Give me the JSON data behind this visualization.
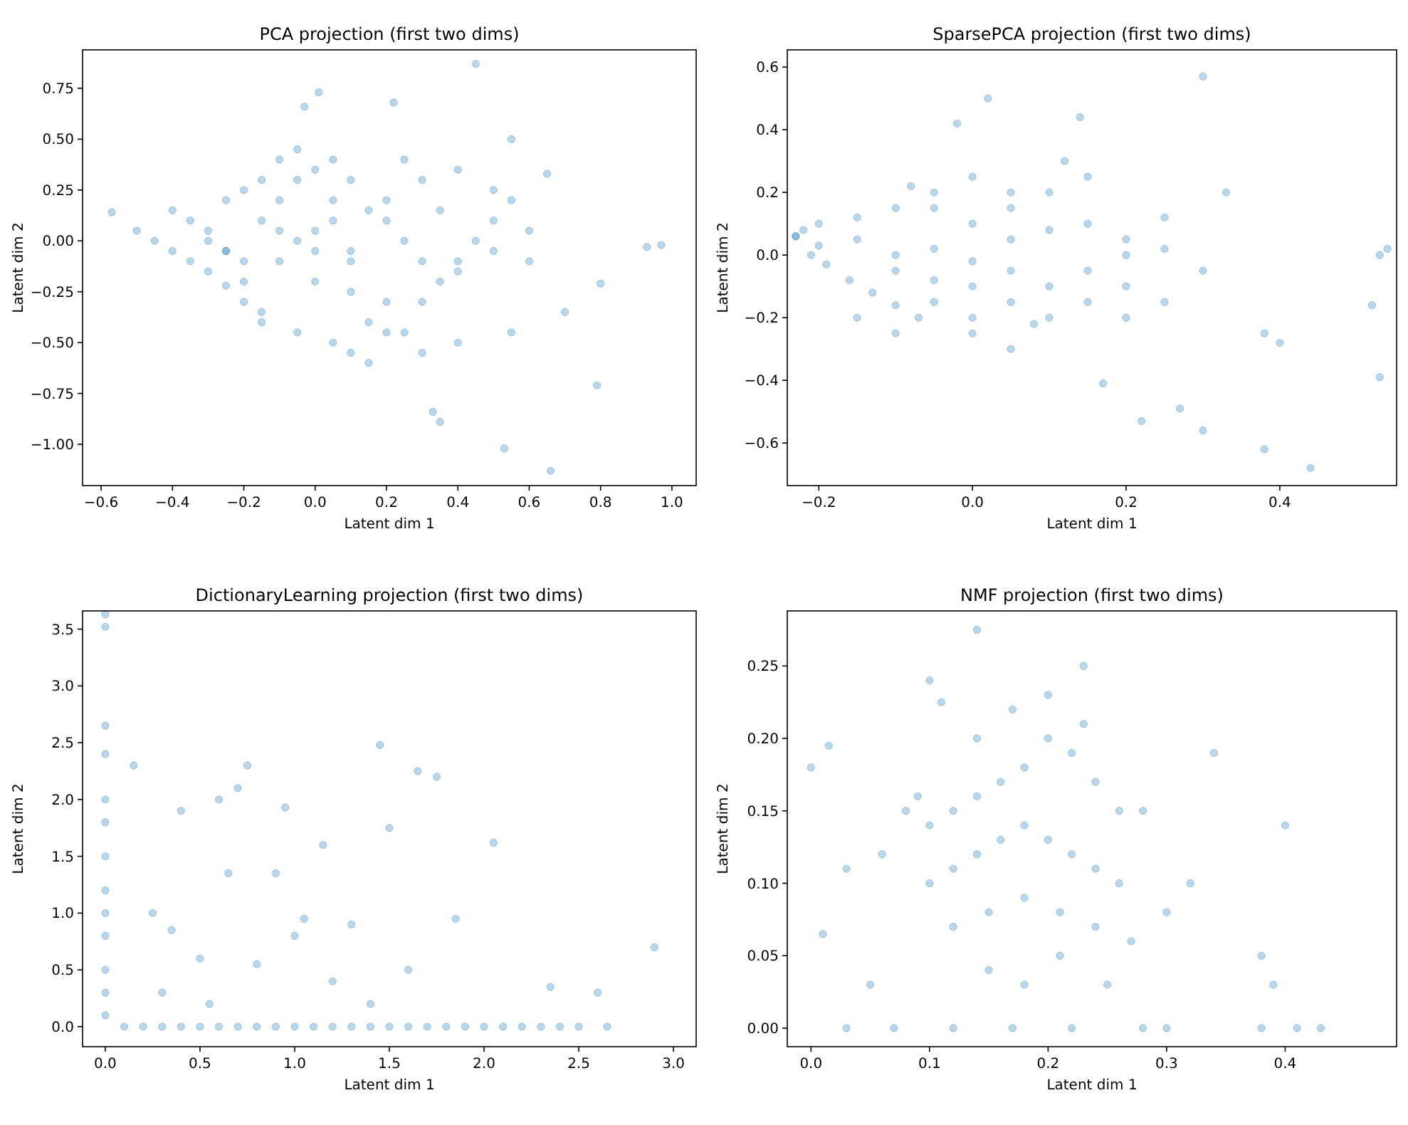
{
  "chart_data": [
    {
      "type": "scatter",
      "title": "PCA projection (first two dims)",
      "xlabel": "Latent dim 1",
      "ylabel": "Latent dim 2",
      "marker": "circle",
      "xlim": [
        -0.652,
        1.068
      ],
      "ylim": [
        -1.203,
        0.939
      ],
      "xticks": [
        {
          "value": -0.6,
          "label": "−0.6"
        },
        {
          "value": -0.4,
          "label": "−0.4"
        },
        {
          "value": -0.2,
          "label": "−0.2"
        },
        {
          "value": 0,
          "label": "0.0"
        },
        {
          "value": 0.2,
          "label": "0.2"
        },
        {
          "value": 0.4,
          "label": "0.4"
        },
        {
          "value": 0.6,
          "label": "0.6"
        },
        {
          "value": 0.8,
          "label": "0.8"
        },
        {
          "value": 1,
          "label": "1.0"
        }
      ],
      "yticks": [
        {
          "value": -1,
          "label": "−1.00"
        },
        {
          "value": -0.75,
          "label": "−0.75"
        },
        {
          "value": -0.5,
          "label": "−0.50"
        },
        {
          "value": -0.25,
          "label": "−0.25"
        },
        {
          "value": 0,
          "label": "0.00"
        },
        {
          "value": 0.25,
          "label": "0.25"
        },
        {
          "value": 0.5,
          "label": "0.50"
        },
        {
          "value": 0.75,
          "label": "0.75"
        }
      ],
      "series": [
        {
          "color": "#1f77b4",
          "x": [
            -0.57,
            -0.5,
            -0.45,
            -0.4,
            -0.35,
            -0.3,
            -0.25,
            -0.2,
            -0.15,
            -0.4,
            -0.35,
            -0.3,
            -0.25,
            -0.2,
            -0.15,
            -0.1,
            -0.05,
            -0.3,
            -0.25,
            -0.2,
            -0.15,
            -0.1,
            -0.05,
            0,
            0.05,
            0.1,
            -0.2,
            -0.1,
            0,
            0.1,
            0.2,
            -0.15,
            -0.05,
            0.05,
            0.15,
            0.25,
            0.3,
            0.35,
            0.4,
            0.45,
            0.5,
            0.55,
            0.6,
            0.3,
            0.4,
            0.5,
            -0.05,
            0,
            0.05,
            0.1,
            0.15,
            0.2,
            0.25,
            0.3,
            0.35,
            0.4,
            0.5,
            0.6,
            0.2,
            0.3,
            0.1,
            0.15,
            0.01,
            -0.03,
            0.45,
            0.97,
            0.93,
            0.8,
            0.79,
            0.66,
            0.53,
            0.35,
            0.33,
            0.7,
            0.22,
            0.55,
            0.65,
            0.55,
            0.4,
            0.2,
            0,
            -0.1,
            0.05,
            0.1,
            -0.25,
            0.25
          ],
          "values": [
            0.14,
            0.05,
            0,
            -0.05,
            -0.1,
            -0.15,
            -0.22,
            -0.3,
            -0.35,
            0.15,
            0.1,
            0.05,
            0.2,
            0.25,
            0.3,
            0.4,
            0.45,
            0,
            -0.05,
            -0.1,
            0.1,
            0.2,
            0.3,
            0.35,
            0.4,
            0.3,
            -0.2,
            -0.1,
            -0.2,
            -0.25,
            -0.3,
            -0.4,
            -0.45,
            -0.5,
            -0.4,
            -0.45,
            -0.3,
            -0.2,
            -0.1,
            0,
            0.1,
            0.2,
            0.05,
            0.3,
            0.35,
            0.25,
            0,
            0.05,
            0.1,
            -0.05,
            0.15,
            0.1,
            0,
            -0.1,
            0.15,
            -0.15,
            -0.05,
            -0.1,
            0.2,
            -0.55,
            -0.55,
            -0.6,
            0.73,
            0.66,
            0.87,
            -0.02,
            -0.03,
            -0.21,
            -0.71,
            -1.13,
            -1.02,
            -0.89,
            -0.84,
            -0.35,
            0.68,
            0.5,
            0.33,
            -0.45,
            -0.5,
            -0.45,
            -0.05,
            0.05,
            0.2,
            -0.1,
            -0.05,
            0.4
          ]
        }
      ]
    },
    {
      "type": "scatter",
      "title": "SparsePCA projection (first two dims)",
      "xlabel": "Latent dim 1",
      "ylabel": "Latent dim 2",
      "marker": "circle",
      "xlim": [
        -0.241,
        0.552
      ],
      "ylim": [
        -0.736,
        0.655
      ],
      "xticks": [
        {
          "value": -0.2,
          "label": "−0.2"
        },
        {
          "value": 0,
          "label": "0.0"
        },
        {
          "value": 0.2,
          "label": "0.2"
        },
        {
          "value": 0.4,
          "label": "0.4"
        }
      ],
      "yticks": [
        {
          "value": -0.6,
          "label": "−0.6"
        },
        {
          "value": -0.4,
          "label": "−0.4"
        },
        {
          "value": -0.2,
          "label": "−0.2"
        },
        {
          "value": 0,
          "label": "0.0"
        },
        {
          "value": 0.2,
          "label": "0.2"
        },
        {
          "value": 0.4,
          "label": "0.4"
        },
        {
          "value": 0.6,
          "label": "0.6"
        }
      ],
      "series": [
        {
          "color": "#1f77b4",
          "x": [
            -0.23,
            -0.21,
            -0.19,
            -0.16,
            -0.13,
            -0.1,
            -0.07,
            -0.22,
            -0.2,
            -0.15,
            -0.1,
            -0.05,
            0,
            0.05,
            -0.2,
            -0.15,
            -0.1,
            -0.05,
            0,
            0.05,
            0.1,
            0.15,
            0.2,
            -0.1,
            -0.05,
            0,
            0.05,
            0.1,
            0.15,
            0.2,
            0.25,
            -0.05,
            0,
            0.05,
            0.1,
            0.15,
            0,
            0.05,
            0.1,
            0.15,
            0.2,
            0.25,
            0.3,
            -0.15,
            -0.1,
            -0.05,
            0,
            0.05,
            0.3,
            0.02,
            0.54,
            0.53,
            0.52,
            0.53,
            0.44,
            0.38,
            0.3,
            0.22,
            0.27,
            0.14,
            -0.23,
            0.38,
            0.4,
            0.17,
            0.33,
            -0.02,
            0.12,
            0.08,
            -0.08,
            0.2,
            0.25
          ],
          "values": [
            0.06,
            0,
            -0.03,
            -0.08,
            -0.12,
            -0.16,
            -0.2,
            0.08,
            0.1,
            0.12,
            0.15,
            0.2,
            0.25,
            0.2,
            0.03,
            0.05,
            0,
            0.02,
            -0.02,
            0.05,
            0.08,
            0.1,
            0.05,
            -0.05,
            -0.08,
            -0.1,
            -0.05,
            -0.1,
            -0.05,
            0,
            0.02,
            0.15,
            0.1,
            0.15,
            0.2,
            0.25,
            -0.2,
            -0.15,
            -0.2,
            -0.15,
            -0.1,
            -0.15,
            -0.05,
            -0.2,
            -0.25,
            -0.15,
            -0.25,
            -0.3,
            0.57,
            0.5,
            0.02,
            0,
            -0.16,
            -0.39,
            -0.68,
            -0.62,
            -0.56,
            -0.53,
            -0.49,
            0.44,
            0.06,
            -0.25,
            -0.28,
            -0.41,
            0.2,
            0.42,
            0.3,
            -0.22,
            0.22,
            -0.2,
            0.12
          ]
        }
      ]
    },
    {
      "type": "scatter",
      "title": "DictionaryLearning projection (first two dims)",
      "xlabel": "Latent dim 1",
      "ylabel": "Latent dim 2",
      "marker": "circle",
      "xlim": [
        -0.12,
        3.12
      ],
      "ylim": [
        -0.176,
        3.66
      ],
      "xticks": [
        {
          "value": 0,
          "label": "0.0"
        },
        {
          "value": 0.5,
          "label": "0.5"
        },
        {
          "value": 1,
          "label": "1.0"
        },
        {
          "value": 1.5,
          "label": "1.5"
        },
        {
          "value": 2,
          "label": "2.0"
        },
        {
          "value": 2.5,
          "label": "2.5"
        },
        {
          "value": 3,
          "label": "3.0"
        }
      ],
      "yticks": [
        {
          "value": 0,
          "label": "0.0"
        },
        {
          "value": 0.5,
          "label": "0.5"
        },
        {
          "value": 1,
          "label": "1.0"
        },
        {
          "value": 1.5,
          "label": "1.5"
        },
        {
          "value": 2,
          "label": "2.0"
        },
        {
          "value": 2.5,
          "label": "2.5"
        },
        {
          "value": 3,
          "label": "3.0"
        },
        {
          "value": 3.5,
          "label": "3.5"
        }
      ],
      "series": [
        {
          "color": "#1f77b4",
          "x": [
            0,
            0,
            0,
            0,
            0,
            0,
            0,
            0,
            0,
            0,
            0,
            0,
            0,
            0.1,
            0.2,
            0.3,
            0.4,
            0.5,
            0.6,
            0.7,
            0.8,
            0.9,
            1,
            1.1,
            1.2,
            1.3,
            1.4,
            1.5,
            1.6,
            1.7,
            1.8,
            1.9,
            2,
            2.1,
            2.2,
            2.3,
            2.4,
            2.5,
            2.65,
            0.15,
            0.4,
            0.6,
            0.7,
            0.75,
            0.95,
            1.45,
            1.5,
            1.65,
            1.75,
            1.15,
            2.05,
            2.9,
            2.6,
            0.35,
            0.5,
            0.8,
            1,
            1.2,
            1.3,
            0.3,
            0.9,
            1.05,
            1.6,
            1.85,
            2.35,
            0.55,
            0.25,
            1.4,
            0.65
          ],
          "values": [
            3.63,
            3.52,
            2.65,
            2.4,
            2,
            1.8,
            1.5,
            1.2,
            1,
            0.8,
            0.5,
            0.3,
            0.1,
            0,
            0,
            0,
            0,
            0,
            0,
            0,
            0,
            0,
            0,
            0,
            0,
            0,
            0,
            0,
            0,
            0,
            0,
            0,
            0,
            0,
            0,
            0,
            0,
            0,
            0,
            2.3,
            1.9,
            2,
            2.1,
            2.3,
            1.93,
            2.48,
            1.75,
            2.25,
            2.2,
            1.6,
            1.62,
            0.7,
            0.3,
            0.85,
            0.6,
            0.55,
            0.8,
            0.4,
            0.9,
            0.3,
            1.35,
            0.95,
            0.5,
            0.95,
            0.35,
            0.2,
            1,
            0.2,
            1.35
          ]
        }
      ]
    },
    {
      "type": "scatter",
      "title": "NMF projection (first two dims)",
      "xlabel": "Latent dim 1",
      "ylabel": "Latent dim 2",
      "marker": "circle",
      "xlim": [
        -0.02,
        0.494
      ],
      "ylim": [
        -0.0128,
        0.288
      ],
      "xticks": [
        {
          "value": 0,
          "label": "0.0"
        },
        {
          "value": 0.1,
          "label": "0.1"
        },
        {
          "value": 0.2,
          "label": "0.2"
        },
        {
          "value": 0.3,
          "label": "0.3"
        },
        {
          "value": 0.4,
          "label": "0.4"
        }
      ],
      "yticks": [
        {
          "value": 0,
          "label": "0.00"
        },
        {
          "value": 0.05,
          "label": "0.05"
        },
        {
          "value": 0.1,
          "label": "0.10"
        },
        {
          "value": 0.15,
          "label": "0.15"
        },
        {
          "value": 0.2,
          "label": "0.20"
        },
        {
          "value": 0.25,
          "label": "0.25"
        }
      ],
      "series": [
        {
          "color": "#1f77b4",
          "x": [
            0,
            0.01,
            0.015,
            0.03,
            0.14,
            0.23,
            0.34,
            0.4,
            0.38,
            0.39,
            0.43,
            0.41,
            0.38,
            0.1,
            0.11,
            0.03,
            0.07,
            0.12,
            0.17,
            0.22,
            0.28,
            0.3,
            0.08,
            0.1,
            0.12,
            0.14,
            0.16,
            0.18,
            0.2,
            0.22,
            0.24,
            0.26,
            0.28,
            0.1,
            0.12,
            0.14,
            0.16,
            0.18,
            0.2,
            0.22,
            0.24,
            0.26,
            0.12,
            0.15,
            0.18,
            0.21,
            0.24,
            0.27,
            0.14,
            0.17,
            0.2,
            0.23,
            0.15,
            0.18,
            0.21,
            0.06,
            0.05,
            0.3,
            0.32,
            0.09,
            0.25
          ],
          "values": [
            0.18,
            0.065,
            0.195,
            0.11,
            0.275,
            0.25,
            0.19,
            0.14,
            0.05,
            0.03,
            0,
            0,
            0,
            0.24,
            0.225,
            0,
            0,
            0,
            0,
            0,
            0,
            0,
            0.15,
            0.14,
            0.15,
            0.16,
            0.17,
            0.18,
            0.2,
            0.19,
            0.17,
            0.15,
            0.15,
            0.1,
            0.11,
            0.12,
            0.13,
            0.14,
            0.13,
            0.12,
            0.11,
            0.1,
            0.07,
            0.08,
            0.09,
            0.08,
            0.07,
            0.06,
            0.2,
            0.22,
            0.23,
            0.21,
            0.04,
            0.03,
            0.05,
            0.12,
            0.03,
            0.08,
            0.1,
            0.16,
            0.03
          ]
        }
      ]
    }
  ]
}
